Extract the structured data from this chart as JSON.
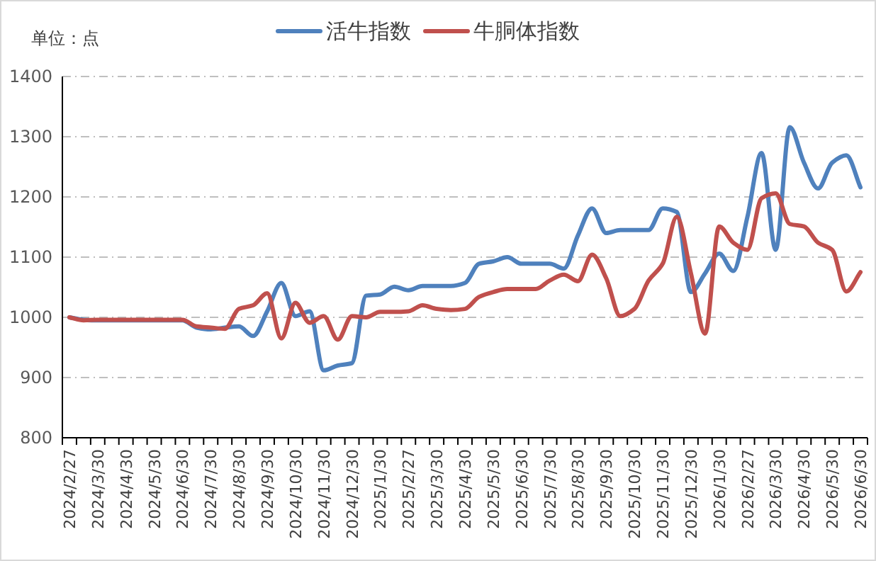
{
  "chart_data": {
    "type": "line",
    "ylabel": "单位：点",
    "legend": "top",
    "grid": "y",
    "line_style": "solid",
    "marker": "none",
    "categories": [
      "2024/2/27",
      null,
      "2024/3/30",
      null,
      "2024/4/30",
      null,
      "2024/5/30",
      null,
      "2024/6/30",
      null,
      "2024/7/30",
      null,
      "2024/8/30",
      null,
      "2024/9/30",
      null,
      "2024/10/30",
      null,
      "2024/11/30",
      null,
      "2024/12/30",
      null,
      "2025/1/30",
      null,
      "2025/2/27",
      null,
      "2025/3/30",
      null,
      "2025/4/30",
      null,
      "2025/5/30",
      null,
      "2025/6/30",
      null,
      "2025/7/30",
      null,
      "2025/8/30",
      null,
      "2025/9/30",
      null,
      "2025/10/30",
      null,
      "2025/11/30",
      null,
      "2025/12/30",
      null,
      "2026/1/30",
      null,
      "2026/2/27",
      null,
      "2026/3/30",
      null,
      "2026/4/30",
      null,
      "2026/5/30",
      null,
      "2026/6/30"
    ],
    "ylim": [
      800,
      1400
    ],
    "yticks": [
      800,
      900,
      1000,
      1100,
      1200,
      1300,
      1400
    ],
    "series": [
      {
        "name": "活牛指数",
        "color": "#4f81bd",
        "values": [
          1000,
          996,
          995,
          995,
          995,
          995,
          995,
          995,
          995,
          983,
          980,
          983,
          985,
          969,
          1010,
          1057,
          1002,
          1010,
          912,
          920,
          924,
          1036,
          1038,
          1051,
          1045,
          1052,
          1052,
          1052,
          1057,
          1089,
          1093,
          1100,
          1089,
          1089,
          1089,
          1081,
          1136,
          1181,
          1140,
          1145,
          1145,
          1145,
          1181,
          1175,
          1042,
          1073,
          1106,
          1077,
          1167,
          1273,
          1112,
          1316,
          1257,
          1214,
          1257,
          1269,
          1216
        ]
      },
      {
        "name": "牛胴体指数",
        "color": "#c0504d",
        "values": [
          1000,
          995,
          996,
          996,
          996,
          996,
          996,
          996,
          996,
          985,
          983,
          981,
          1014,
          1020,
          1040,
          965,
          1024,
          991,
          1002,
          963,
          1002,
          1000,
          1009,
          1009,
          1010,
          1020,
          1014,
          1012,
          1014,
          1034,
          1042,
          1047,
          1047,
          1047,
          1061,
          1071,
          1060,
          1104,
          1065,
          1002,
          1014,
          1061,
          1089,
          1167,
          1073,
          973,
          1151,
          1124,
          1112,
          1198,
          1206,
          1155,
          1151,
          1124,
          1112,
          1043,
          1075
        ]
      }
    ]
  }
}
